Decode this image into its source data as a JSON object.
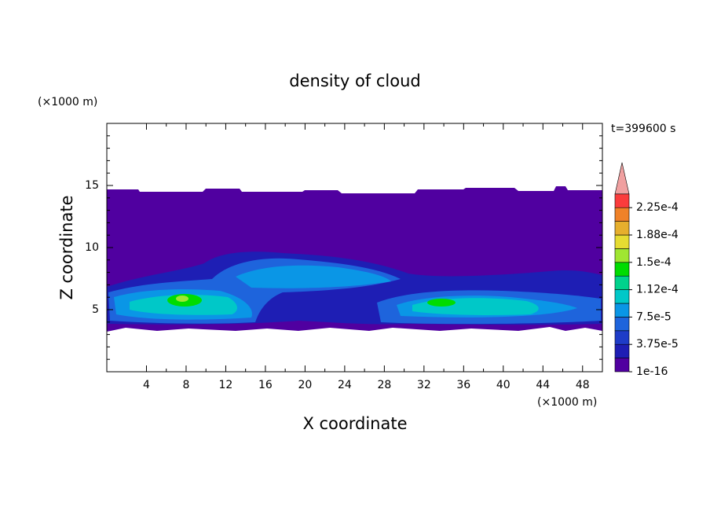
{
  "chart_data": {
    "type": "contour",
    "title": "density of cloud",
    "x_label": "X coordinate",
    "y_label": "Z coordinate",
    "x_unit": "(×1000 m)",
    "y_unit": "(×1000 m)",
    "time_label": "t=399600 s",
    "xlim": [
      0,
      50
    ],
    "xticks": [
      4,
      8,
      12,
      16,
      20,
      24,
      28,
      32,
      36,
      40,
      44,
      48
    ],
    "ylim": [
      0,
      20
    ],
    "yticks": [
      5,
      10,
      15
    ],
    "colorbar": {
      "colors": [
        "#5000a0",
        "#1e1eb4",
        "#1e3cc8",
        "#1e64dc",
        "#0a96e6",
        "#00c8c8",
        "#00d28c",
        "#00dc00",
        "#a0e632",
        "#e6dc32",
        "#e6af2d",
        "#f08228",
        "#fa3c3c",
        "#f0a0a0"
      ],
      "ticks": [
        {
          "value": 1e-16,
          "label": "1e-16"
        },
        {
          "value": 3.75e-05,
          "label": "3.75e-5"
        },
        {
          "value": 7.5e-05,
          "label": "7.5e-5"
        },
        {
          "value": 0.000112,
          "label": "1.12e-4"
        },
        {
          "value": 0.00015,
          "label": "1.5e-4"
        },
        {
          "value": 0.000188,
          "label": "1.88e-4"
        },
        {
          "value": 0.000225,
          "label": "2.25e-4"
        }
      ]
    }
  }
}
